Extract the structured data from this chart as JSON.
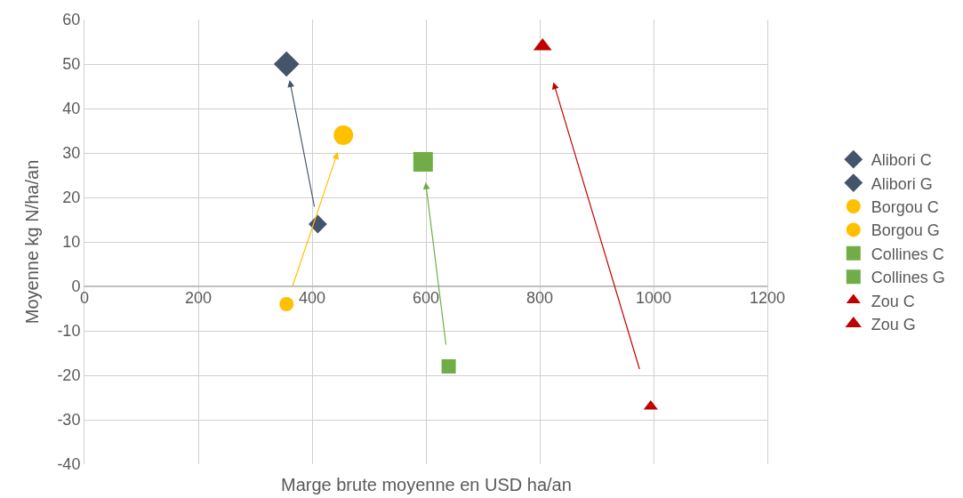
{
  "chart_data": {
    "type": "scatter",
    "xlabel": "Marge brute moyenne en USD ha/an",
    "ylabel": "Moyenne kg N/ha/an",
    "xlim": [
      0,
      1200
    ],
    "xticks": [
      0,
      200,
      400,
      600,
      800,
      1000,
      1200
    ],
    "ylim": [
      -40,
      60
    ],
    "yticks": [
      -40,
      -30,
      -20,
      -10,
      0,
      10,
      20,
      30,
      40,
      50,
      60
    ],
    "grid": true,
    "legend": "right",
    "series": [
      {
        "name": "Alibori C",
        "color": "#44546a",
        "marker": "diamond",
        "x": [
          410
        ],
        "values": [
          14
        ]
      },
      {
        "name": "Alibori G",
        "color": "#44546a",
        "marker": "diamond",
        "x": [
          355
        ],
        "values": [
          50
        ]
      },
      {
        "name": "Borgou C",
        "color": "#ffc000",
        "marker": "circle",
        "x": [
          355
        ],
        "values": [
          -4
        ]
      },
      {
        "name": "Borgou G",
        "color": "#ffc000",
        "marker": "circle",
        "x": [
          455
        ],
        "values": [
          34
        ]
      },
      {
        "name": "Collines C",
        "color": "#70ad47",
        "marker": "square",
        "x": [
          640
        ],
        "values": [
          -18
        ]
      },
      {
        "name": "Collines G",
        "color": "#70ad47",
        "marker": "square",
        "x": [
          595
        ],
        "values": [
          28
        ]
      },
      {
        "name": "Zou C",
        "color": "#c00000",
        "marker": "triangle",
        "x": [
          995
        ],
        "values": [
          -27
        ]
      },
      {
        "name": "Zou G",
        "color": "#c00000",
        "marker": "triangle",
        "x": [
          805
        ],
        "values": [
          54
        ]
      }
    ]
  }
}
